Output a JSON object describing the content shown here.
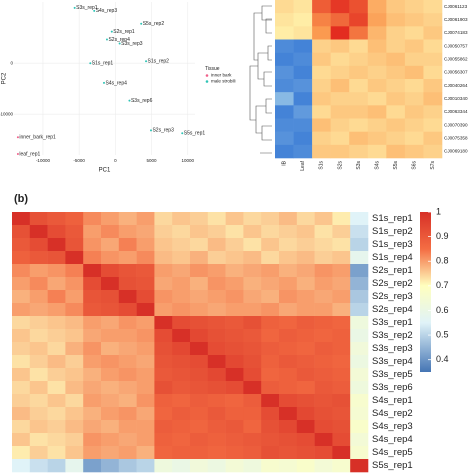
{
  "chart_data": [
    {
      "type": "scatter",
      "xlabel": "PC1",
      "ylabel": "PC2",
      "legend_title": "Tissue",
      "legend": "right",
      "xlim": [
        -14000,
        11000
      ],
      "ylim": [
        -18000,
        12000
      ],
      "xticks": [
        -10000,
        -5000,
        0,
        5000,
        10000
      ],
      "yticks": [
        -10000,
        0
      ],
      "grid": true,
      "series": [
        {
          "name": "inner bark",
          "color": "#f0608a",
          "x": [
            -13460,
            -13460
          ],
          "y": [
            -14520,
            -17810
          ],
          "labels": [
            "inner_bark_rep1",
            "leaf_rep1"
          ]
        },
        {
          "name": "male strobili",
          "color": "#2ec4b6",
          "x": [
            -5620,
            -2920,
            3570,
            -1160,
            590,
            -490,
            -3460,
            4240,
            -1570,
            1950,
            4920,
            9240
          ],
          "y": [
            10840,
            10260,
            7740,
            4650,
            3870,
            6190,
            0,
            390,
            -3870,
            -7350,
            -13160,
            -13740
          ],
          "labels": [
            "S3s_rep1",
            "S4s_rep3",
            "S5s_rep2",
            "S2s_rep4",
            "S3s_rep3",
            "S2s_rep1",
            "S1s_rep1",
            "S1s_rep2",
            "S4s_rep4",
            "S3s_rep6",
            "S2s_rep3",
            "S5s_rep1"
          ]
        }
      ]
    },
    {
      "type": "heatmap",
      "rows": [
        "CJ0061123",
        "CJ0061903",
        "CJ0074183",
        "CJ0050757",
        "CJ0055862",
        "CJ0056307",
        "CJ0040264",
        "CJ0010340",
        "CJ0063344",
        "CJ0070390",
        "CJ0075358",
        "CJ0069180"
      ],
      "columns": [
        "IB",
        "Leaf",
        "S1s",
        "S2s",
        "S3s",
        "S4s",
        "S5s",
        "S6s",
        "S7s"
      ],
      "zlim": [
        -2,
        2
      ],
      "colorscale": [
        {
          "value": -2,
          "color": "#3a7bd5"
        },
        {
          "value": -1,
          "color": "#9cc9e8"
        },
        {
          "value": 0,
          "color": "#fff6b0"
        },
        {
          "value": 1,
          "color": "#fb9a50"
        },
        {
          "value": 2,
          "color": "#e0201b"
        }
      ],
      "values": [
        [
          0.3,
          0.2,
          1.5,
          1.8,
          1.6,
          0.8,
          0.5,
          0.4,
          0.3
        ],
        [
          0.2,
          0.1,
          1.2,
          1.4,
          1.7,
          0.9,
          0.6,
          0.5,
          0.4
        ],
        [
          0.1,
          0.2,
          1.0,
          1.9,
          1.3,
          0.7,
          0.4,
          0.3,
          0.5
        ],
        [
          -1.8,
          -1.9,
          0.4,
          0.5,
          0.3,
          0.6,
          0.4,
          0.5,
          0.3
        ],
        [
          -1.9,
          -1.8,
          0.5,
          0.3,
          0.4,
          0.5,
          0.6,
          0.4,
          0.4
        ],
        [
          -1.7,
          -1.9,
          0.3,
          0.4,
          0.5,
          0.4,
          0.5,
          0.6,
          0.3
        ],
        [
          -1.8,
          -1.7,
          0.4,
          0.6,
          0.3,
          0.5,
          0.4,
          0.3,
          0.5
        ],
        [
          -1.2,
          -1.9,
          0.5,
          0.4,
          0.4,
          0.3,
          0.5,
          0.4,
          0.6
        ],
        [
          -1.9,
          -1.6,
          0.3,
          0.5,
          0.5,
          0.6,
          0.3,
          0.5,
          0.4
        ],
        [
          -1.8,
          -1.8,
          0.6,
          0.4,
          0.3,
          0.4,
          0.5,
          0.4,
          0.3
        ],
        [
          -1.7,
          -1.9,
          0.4,
          0.3,
          0.6,
          0.5,
          0.4,
          0.3,
          0.5
        ],
        [
          -1.9,
          -1.8,
          0.5,
          0.5,
          0.4,
          0.3,
          0.6,
          0.5,
          0.4
        ]
      ]
    },
    {
      "type": "heatmap",
      "panel_label": "(b)",
      "rows": [
        "S1s_rep1",
        "S1s_rep2",
        "S1s_rep3",
        "S1s_rep4",
        "S2s_rep1",
        "S2s_rep2",
        "S2s_rep3",
        "S2s_rep4",
        "S3s_rep1",
        "S3s_rep2",
        "S3s_rep3",
        "S3s_rep4",
        "S3s_rep5",
        "S3s_rep6",
        "S4s_rep1",
        "S4s_rep2",
        "S4s_rep3",
        "S4s_rep4",
        "S4s_rep5",
        "S5s_rep1"
      ],
      "zlim": [
        0.35,
        1
      ],
      "zticks": [
        0.4,
        0.5,
        0.6,
        0.7,
        0.8,
        0.9,
        1
      ],
      "colorscale": [
        {
          "value": 0.35,
          "color": "#4575b4"
        },
        {
          "value": 0.55,
          "color": "#e0f3f8"
        },
        {
          "value": 0.7,
          "color": "#ffffbf"
        },
        {
          "value": 0.85,
          "color": "#f46d43"
        },
        {
          "value": 1,
          "color": "#d73027"
        }
      ],
      "values": [
        [
          1,
          0.92,
          0.9,
          0.88,
          0.82,
          0.8,
          0.78,
          0.8,
          0.74,
          0.76,
          0.75,
          0.73,
          0.76,
          0.74,
          0.75,
          0.77,
          0.74,
          0.76,
          0.72,
          0.55
        ],
        [
          0.92,
          1,
          0.93,
          0.9,
          0.8,
          0.82,
          0.8,
          0.79,
          0.75,
          0.74,
          0.76,
          0.75,
          0.73,
          0.76,
          0.74,
          0.75,
          0.76,
          0.73,
          0.75,
          0.52
        ],
        [
          0.9,
          0.93,
          1,
          0.91,
          0.81,
          0.79,
          0.83,
          0.8,
          0.76,
          0.75,
          0.74,
          0.77,
          0.75,
          0.73,
          0.76,
          0.74,
          0.75,
          0.74,
          0.73,
          0.5
        ],
        [
          0.88,
          0.9,
          0.91,
          1,
          0.83,
          0.81,
          0.8,
          0.82,
          0.77,
          0.76,
          0.78,
          0.75,
          0.76,
          0.77,
          0.74,
          0.76,
          0.77,
          0.75,
          0.76,
          0.58
        ],
        [
          0.82,
          0.8,
          0.81,
          0.83,
          1,
          0.93,
          0.91,
          0.9,
          0.8,
          0.79,
          0.81,
          0.8,
          0.78,
          0.79,
          0.8,
          0.78,
          0.79,
          0.81,
          0.8,
          0.42
        ],
        [
          0.8,
          0.82,
          0.79,
          0.81,
          0.93,
          1,
          0.92,
          0.91,
          0.79,
          0.8,
          0.78,
          0.81,
          0.8,
          0.78,
          0.79,
          0.8,
          0.78,
          0.8,
          0.79,
          0.45
        ],
        [
          0.78,
          0.8,
          0.83,
          0.8,
          0.91,
          0.92,
          1,
          0.93,
          0.81,
          0.8,
          0.79,
          0.8,
          0.81,
          0.79,
          0.78,
          0.81,
          0.8,
          0.79,
          0.8,
          0.48
        ],
        [
          0.8,
          0.79,
          0.8,
          0.82,
          0.9,
          0.91,
          0.93,
          1,
          0.8,
          0.81,
          0.8,
          0.79,
          0.8,
          0.8,
          0.81,
          0.79,
          0.8,
          0.8,
          0.78,
          0.5
        ],
        [
          0.74,
          0.75,
          0.76,
          0.77,
          0.8,
          0.79,
          0.81,
          0.8,
          1,
          0.93,
          0.92,
          0.91,
          0.9,
          0.92,
          0.88,
          0.87,
          0.89,
          0.88,
          0.87,
          0.62
        ],
        [
          0.76,
          0.74,
          0.75,
          0.76,
          0.79,
          0.8,
          0.8,
          0.81,
          0.93,
          1,
          0.94,
          0.92,
          0.91,
          0.9,
          0.87,
          0.89,
          0.88,
          0.87,
          0.88,
          0.6
        ],
        [
          0.75,
          0.76,
          0.74,
          0.78,
          0.81,
          0.78,
          0.79,
          0.8,
          0.92,
          0.94,
          1,
          0.93,
          0.92,
          0.91,
          0.89,
          0.88,
          0.87,
          0.89,
          0.88,
          0.63
        ],
        [
          0.73,
          0.75,
          0.77,
          0.75,
          0.8,
          0.81,
          0.8,
          0.79,
          0.91,
          0.92,
          0.93,
          1,
          0.94,
          0.92,
          0.88,
          0.9,
          0.89,
          0.88,
          0.87,
          0.61
        ],
        [
          0.76,
          0.73,
          0.75,
          0.76,
          0.78,
          0.8,
          0.81,
          0.8,
          0.9,
          0.91,
          0.92,
          0.94,
          1,
          0.93,
          0.87,
          0.88,
          0.9,
          0.89,
          0.88,
          0.64
        ],
        [
          0.74,
          0.76,
          0.73,
          0.77,
          0.79,
          0.78,
          0.79,
          0.8,
          0.92,
          0.9,
          0.91,
          0.92,
          0.93,
          1,
          0.89,
          0.88,
          0.87,
          0.9,
          0.89,
          0.62
        ],
        [
          0.75,
          0.74,
          0.76,
          0.74,
          0.8,
          0.79,
          0.78,
          0.81,
          0.88,
          0.87,
          0.89,
          0.88,
          0.87,
          0.89,
          1,
          0.93,
          0.92,
          0.91,
          0.92,
          0.66
        ],
        [
          0.77,
          0.75,
          0.74,
          0.76,
          0.78,
          0.8,
          0.81,
          0.79,
          0.87,
          0.89,
          0.88,
          0.9,
          0.88,
          0.88,
          0.93,
          1,
          0.94,
          0.92,
          0.91,
          0.65
        ],
        [
          0.74,
          0.76,
          0.75,
          0.77,
          0.79,
          0.78,
          0.8,
          0.8,
          0.89,
          0.88,
          0.87,
          0.89,
          0.9,
          0.87,
          0.92,
          0.94,
          1,
          0.93,
          0.92,
          0.67
        ],
        [
          0.76,
          0.73,
          0.74,
          0.75,
          0.81,
          0.8,
          0.79,
          0.8,
          0.88,
          0.87,
          0.89,
          0.88,
          0.89,
          0.9,
          0.91,
          0.92,
          0.93,
          1,
          0.93,
          0.64
        ],
        [
          0.72,
          0.75,
          0.73,
          0.76,
          0.8,
          0.79,
          0.8,
          0.78,
          0.87,
          0.88,
          0.88,
          0.87,
          0.88,
          0.89,
          0.92,
          0.91,
          0.92,
          0.93,
          1,
          0.66
        ],
        [
          0.55,
          0.52,
          0.5,
          0.58,
          0.42,
          0.45,
          0.48,
          0.5,
          0.62,
          0.6,
          0.63,
          0.61,
          0.64,
          0.62,
          0.66,
          0.65,
          0.67,
          0.64,
          0.66,
          1
        ]
      ]
    }
  ]
}
